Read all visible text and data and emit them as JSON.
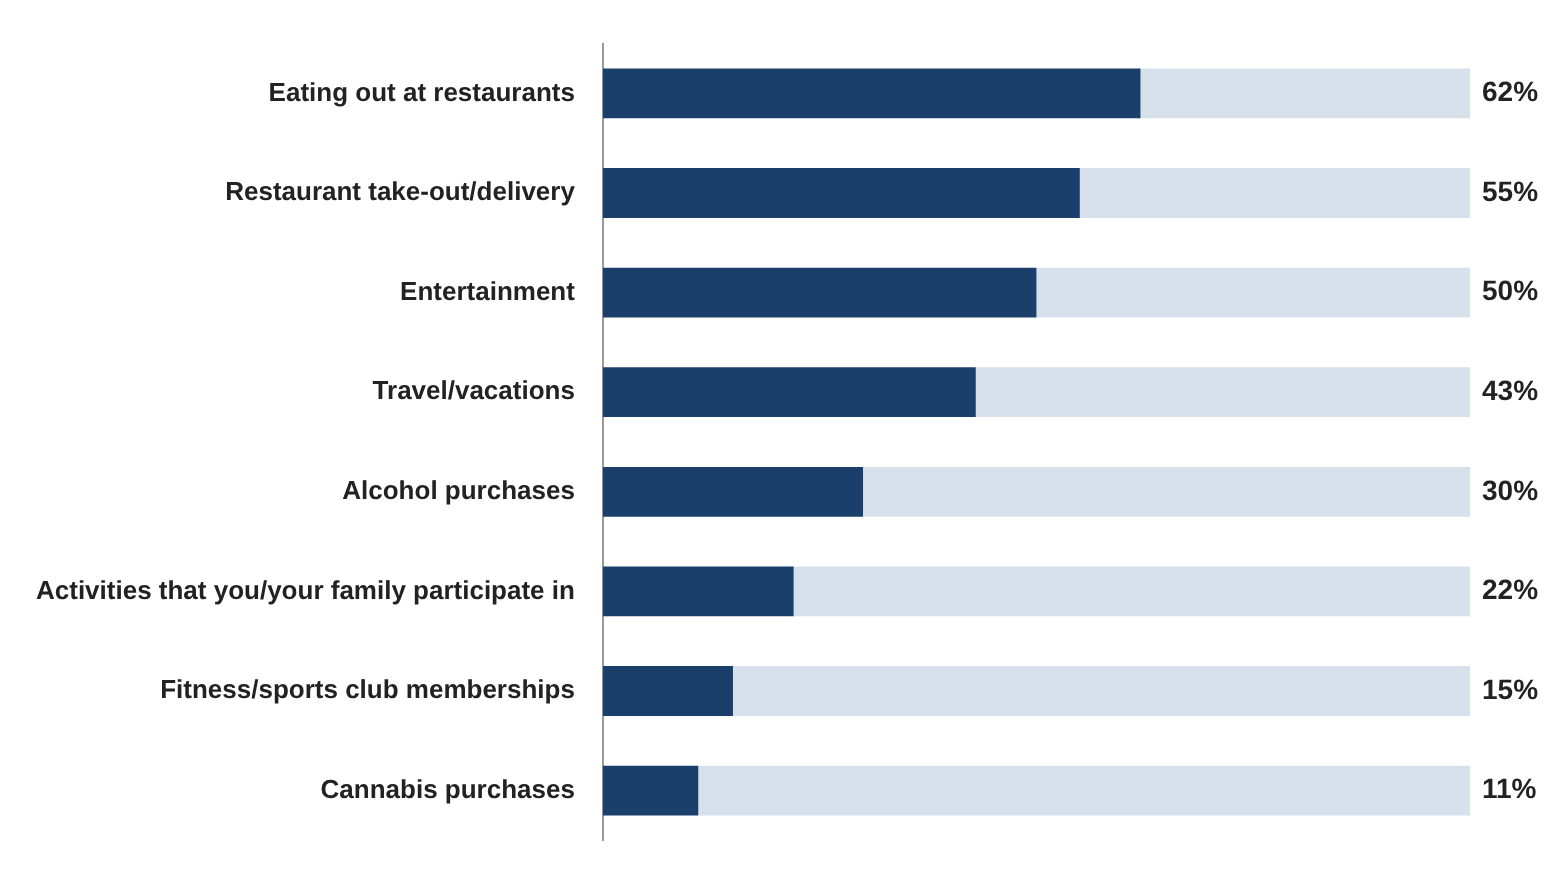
{
  "chart_data": {
    "type": "bar",
    "orientation": "horizontal",
    "stacked": true,
    "categories": [
      "Eating out at restaurants",
      "Restaurant take-out/delivery",
      "Entertainment",
      "Travel/vacations",
      "Alcohol purchases",
      "Activities that you/your family participate in",
      "Fitness/sports club memberships",
      "Cannabis purchases"
    ],
    "series": [
      {
        "color": "#1b3f6b",
        "values": [
          62,
          55,
          50,
          43,
          30,
          22,
          15,
          11
        ],
        "value_labels": [
          "62%",
          "55%",
          "50%",
          "43%",
          "30%",
          "22%",
          "15%",
          "11%"
        ]
      },
      {
        "color": "#d6e1eb",
        "values": [
          38,
          45,
          50,
          57,
          70,
          78,
          85,
          89
        ]
      }
    ],
    "xlim": [
      0,
      100
    ],
    "tick_labels": "y"
  }
}
